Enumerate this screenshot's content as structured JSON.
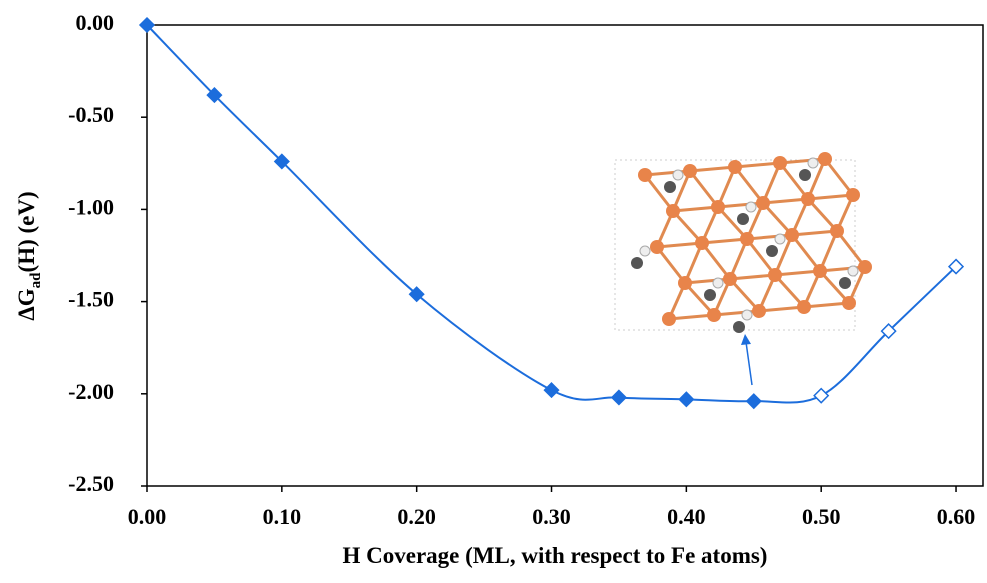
{
  "chart_data": {
    "type": "line",
    "xlabel": "H Coverage (ML, with respect to Fe atoms)",
    "ylabel": {
      "main": "ΔG",
      "sub": "ad",
      "rest": "(H) (eV)"
    },
    "xlim": [
      0,
      0.62
    ],
    "ylim": [
      -2.5,
      0
    ],
    "xticks": [
      {
        "value": 0,
        "label": "0.00"
      },
      {
        "value": 0.1,
        "label": "0.10"
      },
      {
        "value": 0.2,
        "label": "0.20"
      },
      {
        "value": 0.3,
        "label": "0.30"
      },
      {
        "value": 0.4,
        "label": "0.40"
      },
      {
        "value": 0.5,
        "label": "0.50"
      },
      {
        "value": 0.6,
        "label": "0.60"
      }
    ],
    "yticks": [
      {
        "value": 0,
        "label": "0.00"
      },
      {
        "value": -0.5,
        "label": "-0.50"
      },
      {
        "value": -1,
        "label": "-1.00"
      },
      {
        "value": -1.5,
        "label": "-1.50"
      },
      {
        "value": -2,
        "label": "-2.00"
      },
      {
        "value": -2.5,
        "label": "-2.50"
      }
    ],
    "smooth": true,
    "series": [
      {
        "color": "#1c6ddc",
        "marker": "filled",
        "x": [
          0,
          0.05,
          0.1,
          0.2,
          0.3,
          0.35,
          0.4,
          0.45
        ],
        "values": [
          0,
          -0.38,
          -0.74,
          -1.46,
          -1.98,
          -2.02,
          -2.03,
          -2.04
        ]
      },
      {
        "color": "#1c6ddc",
        "marker": "open",
        "x": [
          0.5,
          0.55,
          0.6
        ],
        "values": [
          -2.01,
          -1.66,
          -1.31
        ]
      }
    ]
  }
}
